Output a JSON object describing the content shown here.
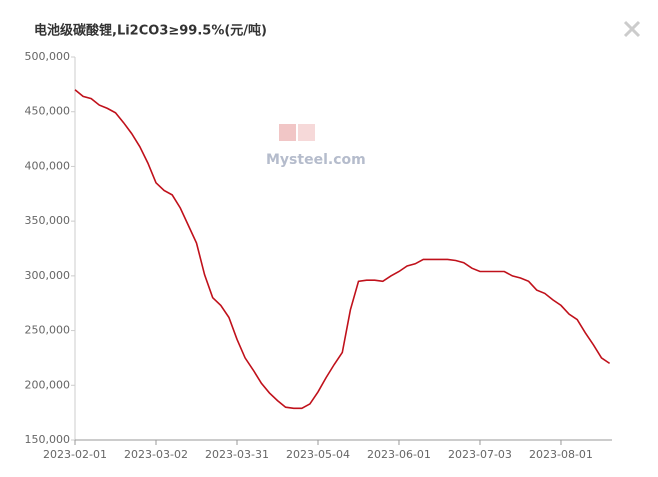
{
  "chart_data": {
    "type": "line",
    "title": "电池级碳酸锂,Li2CO3≥99.5%(元/吨)",
    "watermark": "Mysteel.com",
    "categories": [
      "2023-02-01",
      null,
      null,
      null,
      null,
      null,
      null,
      null,
      null,
      null,
      "2023-03-02",
      null,
      null,
      null,
      null,
      null,
      null,
      null,
      null,
      null,
      "2023-03-31",
      null,
      null,
      null,
      null,
      null,
      null,
      null,
      null,
      null,
      "2023-05-04",
      null,
      null,
      null,
      null,
      null,
      null,
      null,
      null,
      null,
      "2023-06-01",
      null,
      null,
      null,
      null,
      null,
      null,
      null,
      null,
      null,
      "2023-07-03",
      null,
      null,
      null,
      null,
      null,
      null,
      null,
      null,
      null,
      "2023-08-01",
      null,
      null,
      null,
      null,
      null,
      null
    ],
    "series": [
      {
        "name": "电池级碳酸锂",
        "color": "#c0111b",
        "values": [
          470000,
          464000,
          462000,
          456000,
          453000,
          449000,
          440000,
          430000,
          418000,
          403000,
          385000,
          378000,
          374000,
          362000,
          346000,
          330000,
          301000,
          280000,
          273000,
          262000,
          242000,
          225000,
          214000,
          202000,
          193000,
          186000,
          180000,
          179000,
          179000,
          183000,
          194000,
          207000,
          219000,
          230000,
          269000,
          295000,
          296000,
          296000,
          295000,
          300000,
          304000,
          309000,
          311000,
          315000,
          315000,
          315000,
          315000,
          314000,
          312000,
          307000,
          304000,
          304000,
          304000,
          304000,
          300000,
          298000,
          295000,
          287000,
          284000,
          278000,
          273000,
          265000,
          260000,
          248000,
          237000,
          225000,
          220000
        ]
      }
    ],
    "ylim": [
      150000,
      500000
    ],
    "yticks": [
      {
        "value": 150000,
        "label": "150,000"
      },
      {
        "value": 200000,
        "label": "200,000"
      },
      {
        "value": 250000,
        "label": "250,000"
      },
      {
        "value": 300000,
        "label": "300,000"
      },
      {
        "value": 350000,
        "label": "350,000"
      },
      {
        "value": 400000,
        "label": "400,000"
      },
      {
        "value": 450000,
        "label": "450,000"
      },
      {
        "value": 500000,
        "label": "500,000"
      }
    ],
    "grid": false
  }
}
